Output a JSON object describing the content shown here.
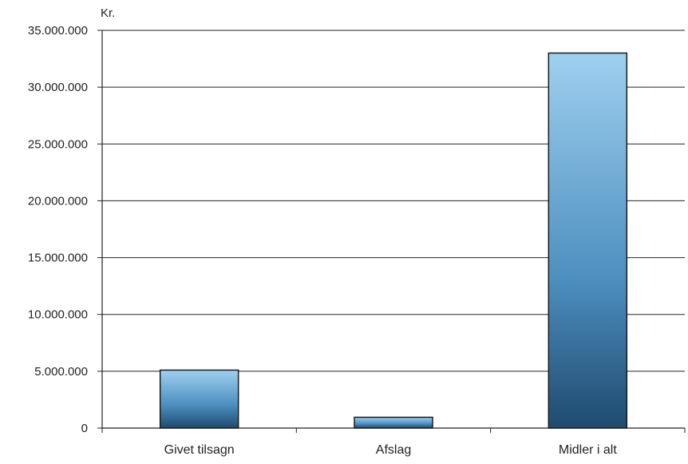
{
  "chart_data": {
    "type": "bar",
    "title": "",
    "xlabel": "",
    "ylabel": "Kr.",
    "categories": [
      "Givet tilsagn",
      "Afslag",
      "Midler i alt"
    ],
    "values": [
      5100000,
      950000,
      33000000
    ],
    "ylim": [
      0,
      35000000
    ],
    "yticks": [
      0,
      5000000,
      10000000,
      15000000,
      20000000,
      25000000,
      30000000,
      35000000
    ],
    "ytick_labels": [
      "0",
      "5.000.000",
      "10.000.000",
      "15.000.000",
      "20.000.000",
      "25.000.000",
      "30.000.000",
      "35.000.000"
    ],
    "grid": true,
    "legend": "none",
    "colors": {
      "bar_top": "#9fd0ef",
      "bar_mid": "#4d8fc0",
      "bar_bottom": "#1f4a6e",
      "bar_stroke": "#1a1a1a",
      "grid": "#222222",
      "axis": "#222222"
    }
  }
}
